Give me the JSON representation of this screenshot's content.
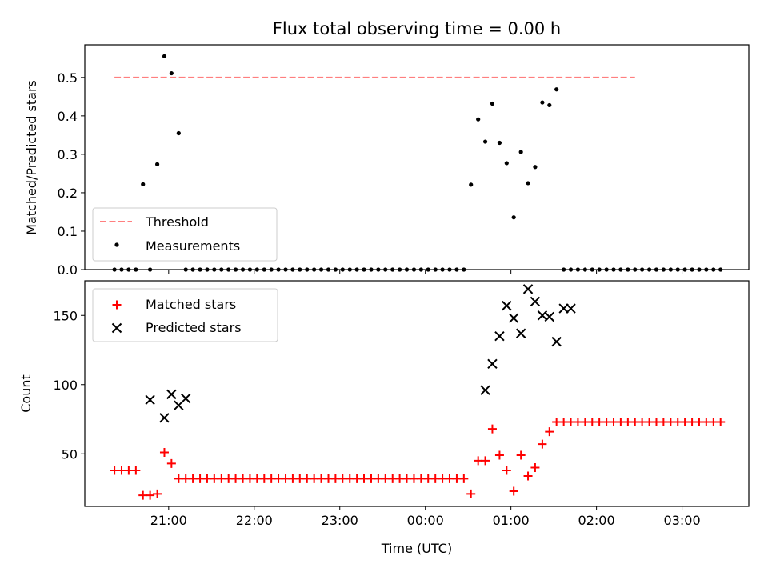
{
  "chart_data": [
    {
      "type": "scatter",
      "title": "Flux total observing time = 0.00 h",
      "ylabel": "Matched/Predicted stars",
      "xlabel": "",
      "ylim": [
        0,
        0.585
      ],
      "yticks": [
        0.0,
        0.1,
        0.2,
        0.3,
        0.4,
        0.5
      ],
      "ytick_labels": [
        "0.0",
        "0.1",
        "0.2",
        "0.3",
        "0.4",
        "0.5"
      ],
      "x_unit": "hours (UTC, 20:00 = 20.0)",
      "xlim": [
        20.02,
        27.78
      ],
      "legend": {
        "placement": "lower-left"
      },
      "series": [
        {
          "name": "Threshold",
          "kind": "line",
          "style": "dashed",
          "color": "#ff7f7f",
          "x": [
            20.367,
            26.45
          ],
          "y": [
            0.5,
            0.5
          ]
        },
        {
          "name": "Measurements",
          "kind": "scatter",
          "color": "#000000",
          "x": [
            20.367,
            20.45,
            20.533,
            20.617,
            20.7,
            20.783,
            20.867,
            20.95,
            21.033,
            21.117,
            21.2,
            21.283,
            21.367,
            21.45,
            21.533,
            21.617,
            21.7,
            21.783,
            21.867,
            21.95,
            22.033,
            22.117,
            22.2,
            22.283,
            22.367,
            22.45,
            22.533,
            22.617,
            22.7,
            22.783,
            22.867,
            22.95,
            23.033,
            23.117,
            23.2,
            23.283,
            23.367,
            23.45,
            23.533,
            23.617,
            23.7,
            23.783,
            23.867,
            23.95,
            24.033,
            24.117,
            24.2,
            24.283,
            24.367,
            24.45,
            24.533,
            24.617,
            24.7,
            24.783,
            24.867,
            24.95,
            25.033,
            25.117,
            25.2,
            25.283,
            25.367,
            25.45,
            25.533,
            25.617,
            25.7,
            25.783,
            25.867,
            25.95,
            26.033,
            26.117,
            26.2,
            26.283,
            26.367,
            26.45,
            26.533,
            26.617,
            26.7,
            26.783,
            26.867,
            26.95,
            27.033,
            27.117,
            27.2,
            27.283,
            27.367,
            27.45
          ],
          "y": [
            0,
            0,
            0,
            0,
            0.222,
            0,
            0.274,
            0.555,
            0.511,
            0.355,
            0,
            0,
            0,
            0,
            0,
            0,
            0,
            0,
            0,
            0,
            0,
            0,
            0,
            0,
            0,
            0,
            0,
            0,
            0,
            0,
            0,
            0,
            0,
            0,
            0,
            0,
            0,
            0,
            0,
            0,
            0,
            0,
            0,
            0,
            0,
            0,
            0,
            0,
            0,
            0,
            0.221,
            0.391,
            0.333,
            0.432,
            0.33,
            0.277,
            0.136,
            0.306,
            0.225,
            0.267,
            0.435,
            0.428,
            0.469,
            0,
            0,
            0,
            0,
            0,
            0,
            0,
            0,
            0,
            0,
            0,
            0,
            0,
            0,
            0,
            0,
            0,
            0,
            0,
            0,
            0,
            0,
            0
          ]
        }
      ]
    },
    {
      "type": "scatter",
      "title": "",
      "ylabel": "Count",
      "xlabel": "Time (UTC)",
      "ylim": [
        12,
        175
      ],
      "yticks": [
        50,
        100,
        150
      ],
      "ytick_labels": [
        "50",
        "100",
        "150"
      ],
      "x_unit": "hours (UTC, 20:00 = 20.0)",
      "xlim": [
        20.02,
        27.78
      ],
      "xticks": [
        21,
        22,
        23,
        24,
        25,
        26,
        27
      ],
      "xtick_labels": [
        "21:00",
        "22:00",
        "23:00",
        "00:00",
        "01:00",
        "02:00",
        "03:00"
      ],
      "legend": {
        "placement": "upper-left"
      },
      "series": [
        {
          "name": "Matched stars",
          "kind": "scatter",
          "marker": "plus",
          "color": "#ff0000",
          "x": [
            20.367,
            20.45,
            20.533,
            20.617,
            20.7,
            20.783,
            20.867,
            20.95,
            21.033,
            21.117,
            21.2,
            21.283,
            21.367,
            21.45,
            21.533,
            21.617,
            21.7,
            21.783,
            21.867,
            21.95,
            22.033,
            22.117,
            22.2,
            22.283,
            22.367,
            22.45,
            22.533,
            22.617,
            22.7,
            22.783,
            22.867,
            22.95,
            23.033,
            23.117,
            23.2,
            23.283,
            23.367,
            23.45,
            23.533,
            23.617,
            23.7,
            23.783,
            23.867,
            23.95,
            24.033,
            24.117,
            24.2,
            24.283,
            24.367,
            24.45,
            24.533,
            24.617,
            24.7,
            24.783,
            24.867,
            24.95,
            25.033,
            25.117,
            25.2,
            25.283,
            25.367,
            25.45,
            25.533,
            25.617,
            25.7,
            25.783,
            25.867,
            25.95,
            26.033,
            26.117,
            26.2,
            26.283,
            26.367,
            26.45,
            26.533,
            26.617,
            26.7,
            26.783,
            26.867,
            26.95,
            27.033,
            27.117,
            27.2,
            27.283,
            27.367,
            27.45
          ],
          "y": [
            38,
            38,
            38,
            38,
            20,
            20,
            21,
            51,
            43,
            32,
            32,
            32,
            32,
            32,
            32,
            32,
            32,
            32,
            32,
            32,
            32,
            32,
            32,
            32,
            32,
            32,
            32,
            32,
            32,
            32,
            32,
            32,
            32,
            32,
            32,
            32,
            32,
            32,
            32,
            32,
            32,
            32,
            32,
            32,
            32,
            32,
            32,
            32,
            32,
            32,
            21,
            45,
            45,
            68,
            49,
            38,
            23,
            49,
            34,
            40,
            57,
            66,
            73,
            73,
            73,
            73,
            73,
            73,
            73,
            73,
            73,
            73,
            73,
            73,
            73,
            73,
            73,
            73,
            73,
            73,
            73,
            73,
            73,
            73,
            73,
            73
          ]
        },
        {
          "name": "Predicted stars",
          "kind": "scatter",
          "marker": "x",
          "color": "#000000",
          "x": [
            20.783,
            20.95,
            21.033,
            21.117,
            21.2,
            24.7,
            24.783,
            24.867,
            24.95,
            25.033,
            25.117,
            25.2,
            25.283,
            25.367,
            25.45,
            25.533,
            25.617,
            25.7
          ],
          "y": [
            89,
            76,
            93,
            85,
            90,
            96,
            115,
            135,
            157,
            148,
            137,
            169,
            160,
            150,
            149,
            131,
            155,
            155
          ]
        }
      ]
    }
  ]
}
